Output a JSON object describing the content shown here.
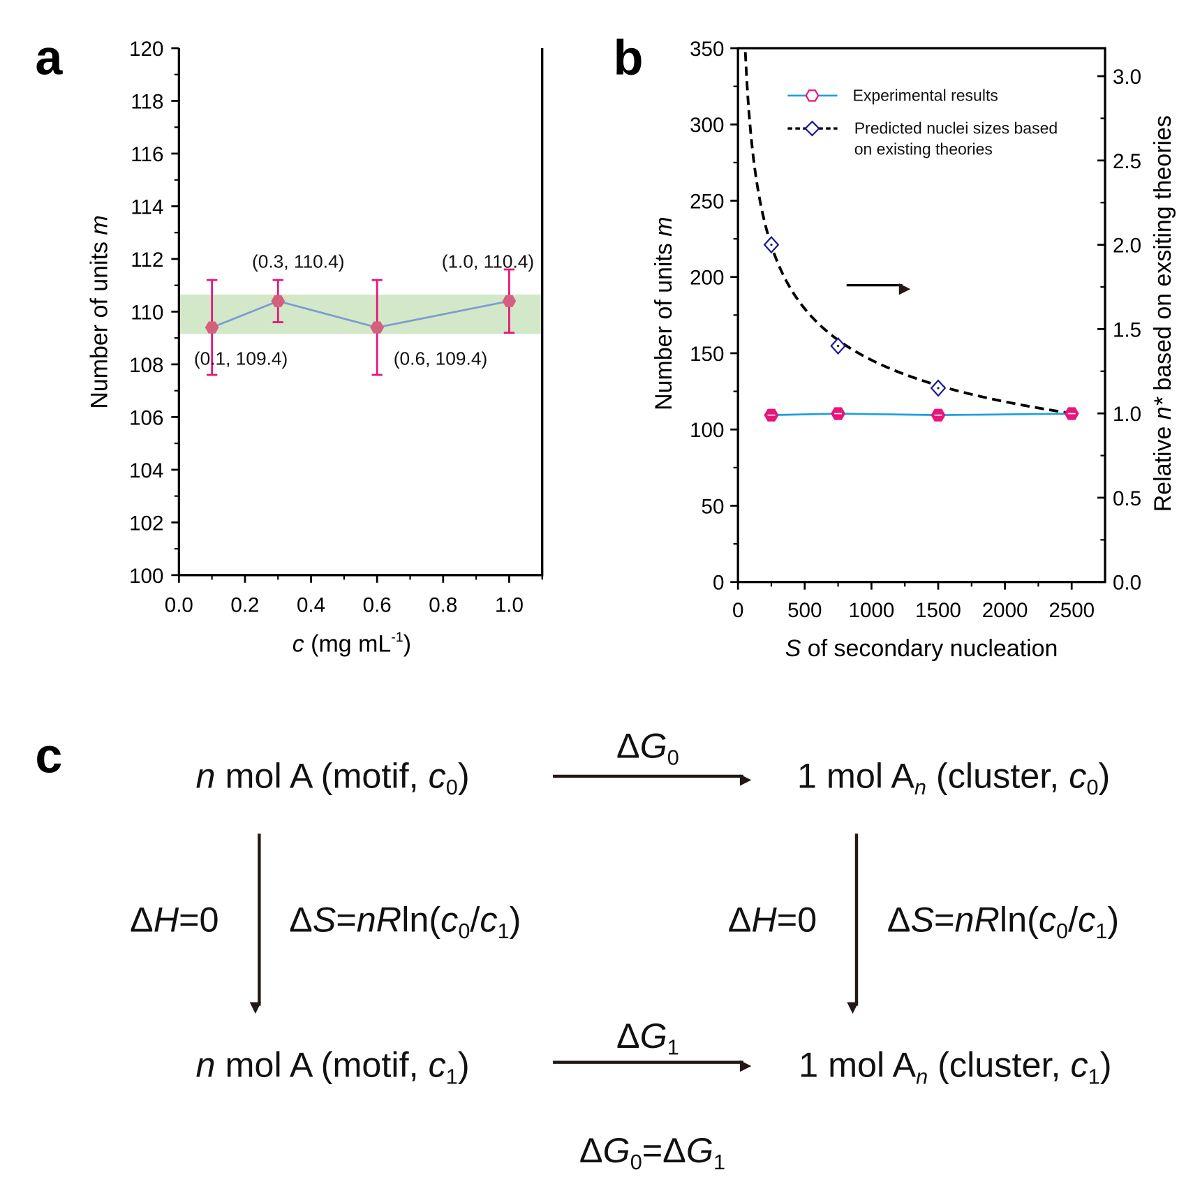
{
  "panels": {
    "a": "a",
    "b": "b",
    "c": "c"
  },
  "colors": {
    "a_marker": "#d4607e",
    "a_errorbar": "#e8157a",
    "a_line": "#7e9bd1",
    "a_band": "#d3e8c8",
    "b_exp": "#e8157a",
    "b_exp_line": "#1ea0e0",
    "b_pred": "#1a1a8c",
    "b_curve": "#000000",
    "blue_text": "#1a6fb5",
    "orange_text": "#f7a51c",
    "arrow": "#231815"
  },
  "chart_data": [
    {
      "type": "line",
      "panel": "a",
      "xlabel": {
        "italic": "c",
        "rest": " (mg mL",
        "sup": "-1",
        "close": ")"
      },
      "ylabel": {
        "text": "Number of units ",
        "italic": "m"
      },
      "xlim": [
        0,
        1.1
      ],
      "ylim": [
        100,
        120
      ],
      "xticks": [
        "0.0",
        "0.2",
        "0.4",
        "0.6",
        "0.8",
        "1.0"
      ],
      "yticks": [
        "100",
        "102",
        "104",
        "106",
        "108",
        "110",
        "112",
        "114",
        "116",
        "118",
        "120"
      ],
      "band": [
        109.15,
        110.65
      ],
      "points": [
        {
          "x": 0.1,
          "y": 109.4,
          "err_low": 107.6,
          "err_high": 111.2,
          "label": "(0.1, 109.4)"
        },
        {
          "x": 0.3,
          "y": 110.4,
          "err_low": 109.6,
          "err_high": 111.2,
          "label": "(0.3, 110.4)"
        },
        {
          "x": 0.6,
          "y": 109.4,
          "err_low": 107.6,
          "err_high": 111.2,
          "label": "(0.6, 109.4)"
        },
        {
          "x": 1.0,
          "y": 110.4,
          "err_low": 109.2,
          "err_high": 111.6,
          "label": "(1.0, 110.4)"
        }
      ]
    },
    {
      "type": "line",
      "panel": "b",
      "xlabel": {
        "italic": "S",
        "rest": " of secondary nucleation"
      },
      "ylabel": {
        "text": "Number of units ",
        "italic": "m"
      },
      "y2label": {
        "text": "Relative ",
        "italic": "n*",
        "rest": " based on exsiting theories"
      },
      "xlim": [
        0,
        2750
      ],
      "ylim": [
        0,
        350
      ],
      "y2lim": [
        0,
        3.166
      ],
      "xticks": [
        "0",
        "500",
        "1000",
        "1500",
        "2000",
        "2500"
      ],
      "yticks": [
        "0",
        "50",
        "100",
        "150",
        "200",
        "250",
        "300",
        "350"
      ],
      "y2ticks": [
        "0.0",
        "0.5",
        "1.0",
        "1.5",
        "2.0",
        "2.5",
        "3.0"
      ],
      "legend_position": "top-right",
      "series": [
        {
          "name": "Experimental results",
          "axis": "left",
          "x": [
            250,
            750,
            1500,
            2500
          ],
          "y": [
            109.4,
            110.4,
            109.4,
            110.4
          ]
        },
        {
          "name": "Predicted nuclei sizes based",
          "name_line2": "on existing theories",
          "axis": "right",
          "x": [
            250,
            750,
            1500,
            2500
          ],
          "y": [
            2.0,
            1.4,
            1.15,
            1.0
          ]
        }
      ]
    }
  ],
  "scheme": {
    "top_left": [
      [
        "n",
        "i"
      ],
      [
        " mol A (motif, ",
        ""
      ],
      [
        "c",
        "i"
      ],
      [
        "0",
        "sub"
      ],
      [
        ")",
        ""
      ]
    ],
    "top_right": [
      [
        "1 mol A",
        ""
      ],
      [
        "n",
        "isub"
      ],
      [
        " (cluster, ",
        ""
      ],
      [
        "c",
        "i"
      ],
      [
        "0",
        "sub"
      ],
      [
        ")",
        ""
      ]
    ],
    "bottom_left": [
      [
        "n",
        "i"
      ],
      [
        " mol A (motif, ",
        ""
      ],
      [
        "c",
        "i"
      ],
      [
        "1",
        "sub"
      ],
      [
        ")",
        ""
      ]
    ],
    "bottom_right": [
      [
        "1 mol A",
        ""
      ],
      [
        "n",
        "isub"
      ],
      [
        " (cluster, ",
        ""
      ],
      [
        "c",
        "i"
      ],
      [
        "1",
        "sub"
      ],
      [
        ")",
        ""
      ]
    ],
    "top_arrow": [
      [
        "Δ",
        ""
      ],
      [
        "G",
        "i"
      ],
      [
        "0",
        "sub"
      ]
    ],
    "bottom_arrow": [
      [
        "Δ",
        ""
      ],
      [
        "G",
        "i"
      ],
      [
        "1",
        "sub"
      ]
    ],
    "left_dh": [
      [
        "Δ",
        ""
      ],
      [
        "H",
        "i"
      ],
      [
        "=0",
        ""
      ]
    ],
    "left_ds": [
      [
        "Δ",
        ""
      ],
      [
        "S",
        "i"
      ],
      [
        "=",
        ""
      ],
      [
        "nR",
        "i"
      ],
      [
        "ln(",
        ""
      ],
      [
        "c",
        "i"
      ],
      [
        "0",
        "sub"
      ],
      [
        "/",
        ""
      ],
      [
        "c",
        "i"
      ],
      [
        "1",
        "sub"
      ],
      [
        ")",
        ""
      ]
    ],
    "right_dh": [
      [
        "Δ",
        ""
      ],
      [
        "H",
        "i"
      ],
      [
        "=0",
        ""
      ]
    ],
    "right_ds": [
      [
        "Δ",
        ""
      ],
      [
        "S",
        "i"
      ],
      [
        "=",
        ""
      ],
      [
        "nR",
        "i"
      ],
      [
        "ln(",
        ""
      ],
      [
        "c",
        "i"
      ],
      [
        "0",
        "sub"
      ],
      [
        "/",
        ""
      ],
      [
        "c",
        "i"
      ],
      [
        "1",
        "sub"
      ],
      [
        ")",
        ""
      ]
    ],
    "equality": [
      [
        "Δ",
        ""
      ],
      [
        "G",
        "i"
      ],
      [
        "0",
        "sub"
      ],
      [
        "=Δ",
        ""
      ],
      [
        "G",
        "i"
      ],
      [
        "1",
        "sub"
      ]
    ]
  }
}
